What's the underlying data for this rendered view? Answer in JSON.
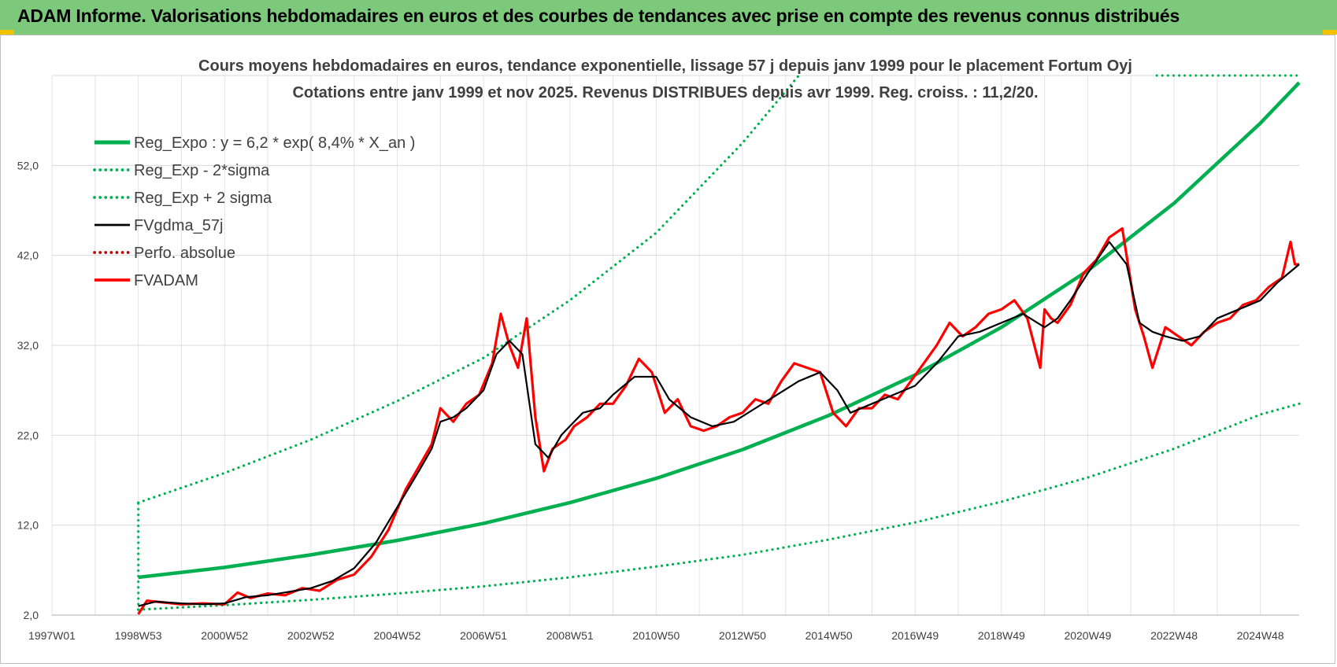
{
  "header": {
    "title": "ADAM Informe. Valorisations hebdomadaires en euros et des courbes de tendances avec prise en compte des revenus connus distribués"
  },
  "colors": {
    "header_bg": "#7dc97b",
    "regression": "#00b050",
    "smoothed": "#000000",
    "price": "#ff0000",
    "perf": "#c00000"
  },
  "chart_data": {
    "type": "line",
    "title": "Cours moyens hebdomadaires en euros, tendance exponentielle, lissage 57 j depuis janv 1999 pour le placement Fortum Oyj",
    "subtitle": "Cotations entre janv 1999 et nov 2025. Revenus DISTRIBUES depuis avr 1999. Reg. croiss. : 11,2/20.",
    "xlabel": "",
    "ylabel": "",
    "ylim": [
      2,
      62
    ],
    "xlim": [
      1997.0,
      2025.9
    ],
    "y_ticks": [
      "2,0",
      "12,0",
      "22,0",
      "32,0",
      "42,0",
      "52,0"
    ],
    "x_ticks": [
      {
        "label": "1997W01",
        "x": 1997.0
      },
      {
        "label": "1998W53",
        "x": 1999.0
      },
      {
        "label": "2000W52",
        "x": 2001.0
      },
      {
        "label": "2002W52",
        "x": 2003.0
      },
      {
        "label": "2004W52",
        "x": 2005.0
      },
      {
        "label": "2006W51",
        "x": 2007.0
      },
      {
        "label": "2008W51",
        "x": 2009.0
      },
      {
        "label": "2010W50",
        "x": 2011.0
      },
      {
        "label": "2012W50",
        "x": 2013.0
      },
      {
        "label": "2014W50",
        "x": 2015.0
      },
      {
        "label": "2016W49",
        "x": 2017.0
      },
      {
        "label": "2018W49",
        "x": 2019.0
      },
      {
        "label": "2020W49",
        "x": 2021.0
      },
      {
        "label": "2022W48",
        "x": 2023.0
      },
      {
        "label": "2024W48",
        "x": 2025.0
      }
    ],
    "grid": true,
    "legend_position": "top-left",
    "series": [
      {
        "name": "Reg_Expo : y = 6,2 * exp( 8,4% *  X_an )",
        "style": "solid-thick",
        "color": "#00b050",
        "x": [
          1999.0,
          2001.0,
          2003.0,
          2005.0,
          2007.0,
          2009.0,
          2011.0,
          2013.0,
          2015.0,
          2017.0,
          2019.0,
          2021.0,
          2023.0,
          2025.0,
          2025.9
        ],
        "values": [
          6.2,
          7.3,
          8.7,
          10.3,
          12.2,
          14.5,
          17.2,
          20.4,
          24.2,
          28.7,
          34.0,
          40.3,
          47.8,
          56.7,
          61.2
        ]
      },
      {
        "name": "Reg_Exp - 2*sigma",
        "style": "dotted",
        "color": "#00b050",
        "x": [
          1999.0,
          2001.0,
          2003.0,
          2005.0,
          2007.0,
          2009.0,
          2011.0,
          2013.0,
          2015.0,
          2017.0,
          2019.0,
          2021.0,
          2023.0,
          2025.0,
          2025.9
        ],
        "values": [
          2.6,
          3.1,
          3.7,
          4.4,
          5.2,
          6.2,
          7.4,
          8.7,
          10.4,
          12.3,
          14.6,
          17.3,
          20.5,
          24.3,
          25.5
        ]
      },
      {
        "name": "Reg_Exp + 2 sigma",
        "style": "dotted",
        "color": "#00b050",
        "x": [
          1999.0,
          2001.0,
          2003.0,
          2005.0,
          2007.0,
          2009.0,
          2011.0,
          2013.0,
          2015.0
        ],
        "values": [
          14.5,
          17.8,
          21.5,
          25.8,
          30.6,
          37.0,
          44.5,
          54.5,
          66.0
        ]
      },
      {
        "name": "FVgdma_57j",
        "style": "solid",
        "color": "#000000",
        "x": [
          1999.0,
          1999.4,
          2000.0,
          2000.5,
          2001.0,
          2001.5,
          2002.0,
          2002.5,
          2003.0,
          2003.5,
          2004.0,
          2004.5,
          2005.0,
          2005.5,
          2005.8,
          2006.0,
          2006.3,
          2006.6,
          2007.0,
          2007.3,
          2007.6,
          2007.9,
          2008.2,
          2008.5,
          2008.8,
          2009.0,
          2009.3,
          2009.7,
          2010.0,
          2010.5,
          2011.0,
          2011.3,
          2011.8,
          2012.3,
          2012.8,
          2013.3,
          2013.8,
          2014.3,
          2014.8,
          2015.2,
          2015.5,
          2016.0,
          2016.5,
          2017.0,
          2017.5,
          2018.0,
          2018.5,
          2019.0,
          2019.5,
          2020.0,
          2020.3,
          2020.6,
          2021.0,
          2021.5,
          2021.9,
          2022.2,
          2022.5,
          2022.8,
          2023.2,
          2023.6,
          2024.0,
          2024.5,
          2025.0,
          2025.4,
          2025.9
        ],
        "values": [
          3.0,
          3.5,
          3.3,
          3.2,
          3.3,
          4.0,
          4.2,
          4.6,
          5.0,
          5.8,
          7.2,
          10.0,
          14.0,
          18.0,
          20.5,
          23.5,
          24.0,
          25.0,
          27.0,
          31.0,
          32.5,
          31.0,
          21.0,
          19.5,
          22.0,
          23.0,
          24.5,
          25.0,
          26.5,
          28.5,
          28.5,
          26.0,
          24.0,
          23.0,
          23.5,
          25.0,
          26.5,
          28.0,
          29.0,
          27.0,
          24.5,
          25.5,
          26.5,
          27.5,
          30.0,
          33.0,
          33.5,
          34.5,
          35.5,
          34.0,
          35.0,
          37.0,
          40.0,
          43.5,
          41.0,
          34.5,
          33.5,
          33.0,
          32.5,
          33.0,
          35.0,
          36.0,
          37.0,
          39.0,
          41.0
        ]
      },
      {
        "name": "Perfo. absolue",
        "style": "dotted",
        "color": "#c00000",
        "x": [],
        "values": []
      },
      {
        "name": "FVADAM",
        "style": "solid-thick",
        "color": "#ff0000",
        "x": [
          1999.0,
          1999.2,
          1999.6,
          2000.0,
          2000.5,
          2001.0,
          2001.3,
          2001.6,
          2002.0,
          2002.4,
          2002.8,
          2003.2,
          2003.6,
          2004.0,
          2004.4,
          2004.8,
          2005.2,
          2005.5,
          2005.8,
          2006.0,
          2006.3,
          2006.6,
          2006.9,
          2007.2,
          2007.4,
          2007.6,
          2007.8,
          2008.0,
          2008.2,
          2008.4,
          2008.6,
          2008.9,
          2009.1,
          2009.4,
          2009.7,
          2010.0,
          2010.3,
          2010.6,
          2010.9,
          2011.2,
          2011.5,
          2011.8,
          2012.1,
          2012.4,
          2012.7,
          2013.0,
          2013.3,
          2013.6,
          2013.9,
          2014.2,
          2014.5,
          2014.8,
          2015.1,
          2015.4,
          2015.7,
          2016.0,
          2016.3,
          2016.6,
          2016.9,
          2017.2,
          2017.5,
          2017.8,
          2018.1,
          2018.4,
          2018.7,
          2019.0,
          2019.3,
          2019.6,
          2019.9,
          2020.0,
          2020.15,
          2020.3,
          2020.6,
          2020.9,
          2021.2,
          2021.5,
          2021.8,
          2022.0,
          2022.1,
          2022.3,
          2022.5,
          2022.8,
          2023.1,
          2023.4,
          2023.7,
          2024.0,
          2024.3,
          2024.6,
          2024.9,
          2025.2,
          2025.5,
          2025.7,
          2025.8,
          2025.9
        ],
        "values": [
          2.1,
          3.6,
          3.4,
          3.2,
          3.3,
          3.2,
          4.5,
          3.9,
          4.4,
          4.2,
          5.0,
          4.7,
          5.9,
          6.5,
          8.5,
          11.5,
          16.0,
          18.5,
          21.0,
          25.0,
          23.5,
          25.5,
          26.5,
          30.0,
          35.5,
          32.0,
          29.5,
          35.0,
          24.0,
          18.0,
          20.5,
          21.5,
          23.0,
          24.0,
          25.5,
          25.5,
          27.5,
          30.5,
          29.0,
          24.5,
          26.0,
          23.0,
          22.5,
          23.0,
          24.0,
          24.5,
          26.0,
          25.5,
          28.0,
          30.0,
          29.5,
          29.0,
          24.5,
          23.0,
          25.0,
          25.0,
          26.5,
          26.0,
          28.0,
          30.0,
          32.0,
          34.5,
          33.0,
          34.0,
          35.5,
          36.0,
          37.0,
          35.0,
          29.5,
          36.0,
          35.0,
          34.5,
          36.5,
          40.0,
          41.5,
          44.0,
          45.0,
          39.0,
          36.0,
          33.0,
          29.5,
          34.0,
          33.0,
          32.0,
          33.5,
          34.5,
          35.0,
          36.5,
          37.0,
          38.5,
          39.5,
          43.5,
          41.0,
          41.0
        ]
      }
    ]
  }
}
